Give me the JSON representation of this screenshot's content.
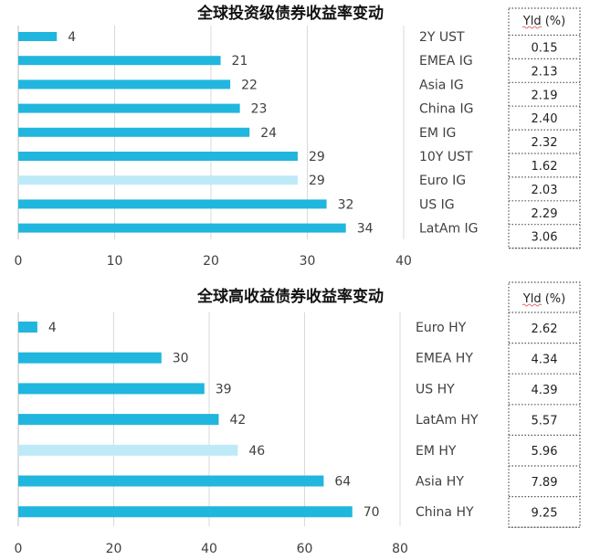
{
  "colors": {
    "bar": "#20B6DE",
    "highlight": "#BEEAF8",
    "grid": "#D9D9D9",
    "box": "#555555"
  },
  "chart_data": [
    {
      "type": "bar",
      "orientation": "horizontal",
      "title": "全球投资级债券收益率变动",
      "categories": [
        "2Y UST",
        "EMEA IG",
        "Asia IG",
        "China IG",
        "EM IG",
        "10Y UST",
        "Euro IG",
        "US IG",
        "LatAm IG"
      ],
      "values": [
        4,
        21,
        22,
        23,
        24,
        29,
        29,
        32,
        34
      ],
      "highlight_category": "Euro IG",
      "xlim": [
        0,
        40
      ],
      "xticks": [
        "0",
        "10",
        "20",
        "30",
        "40"
      ],
      "grid": true,
      "yield_header": "Yld (%)",
      "yields": [
        "0.15",
        "2.13",
        "2.19",
        "2.40",
        "2.32",
        "1.62",
        "2.03",
        "2.29",
        "3.06"
      ]
    },
    {
      "type": "bar",
      "orientation": "horizontal",
      "title": "全球高收益债券收益率变动",
      "categories": [
        "Euro HY",
        "EMEA HY",
        "US HY",
        "LatAm HY",
        "EM HY",
        "Asia HY",
        "China HY"
      ],
      "values": [
        4,
        30,
        39,
        42,
        46,
        64,
        70
      ],
      "highlight_category": "EM HY",
      "xlim": [
        0,
        80
      ],
      "xticks": [
        "0",
        "20",
        "40",
        "60",
        "80"
      ],
      "grid": true,
      "yield_header": "Yld (%)",
      "yields": [
        "2.62",
        "4.34",
        "4.39",
        "5.57",
        "5.96",
        "7.89",
        "9.25"
      ]
    }
  ]
}
